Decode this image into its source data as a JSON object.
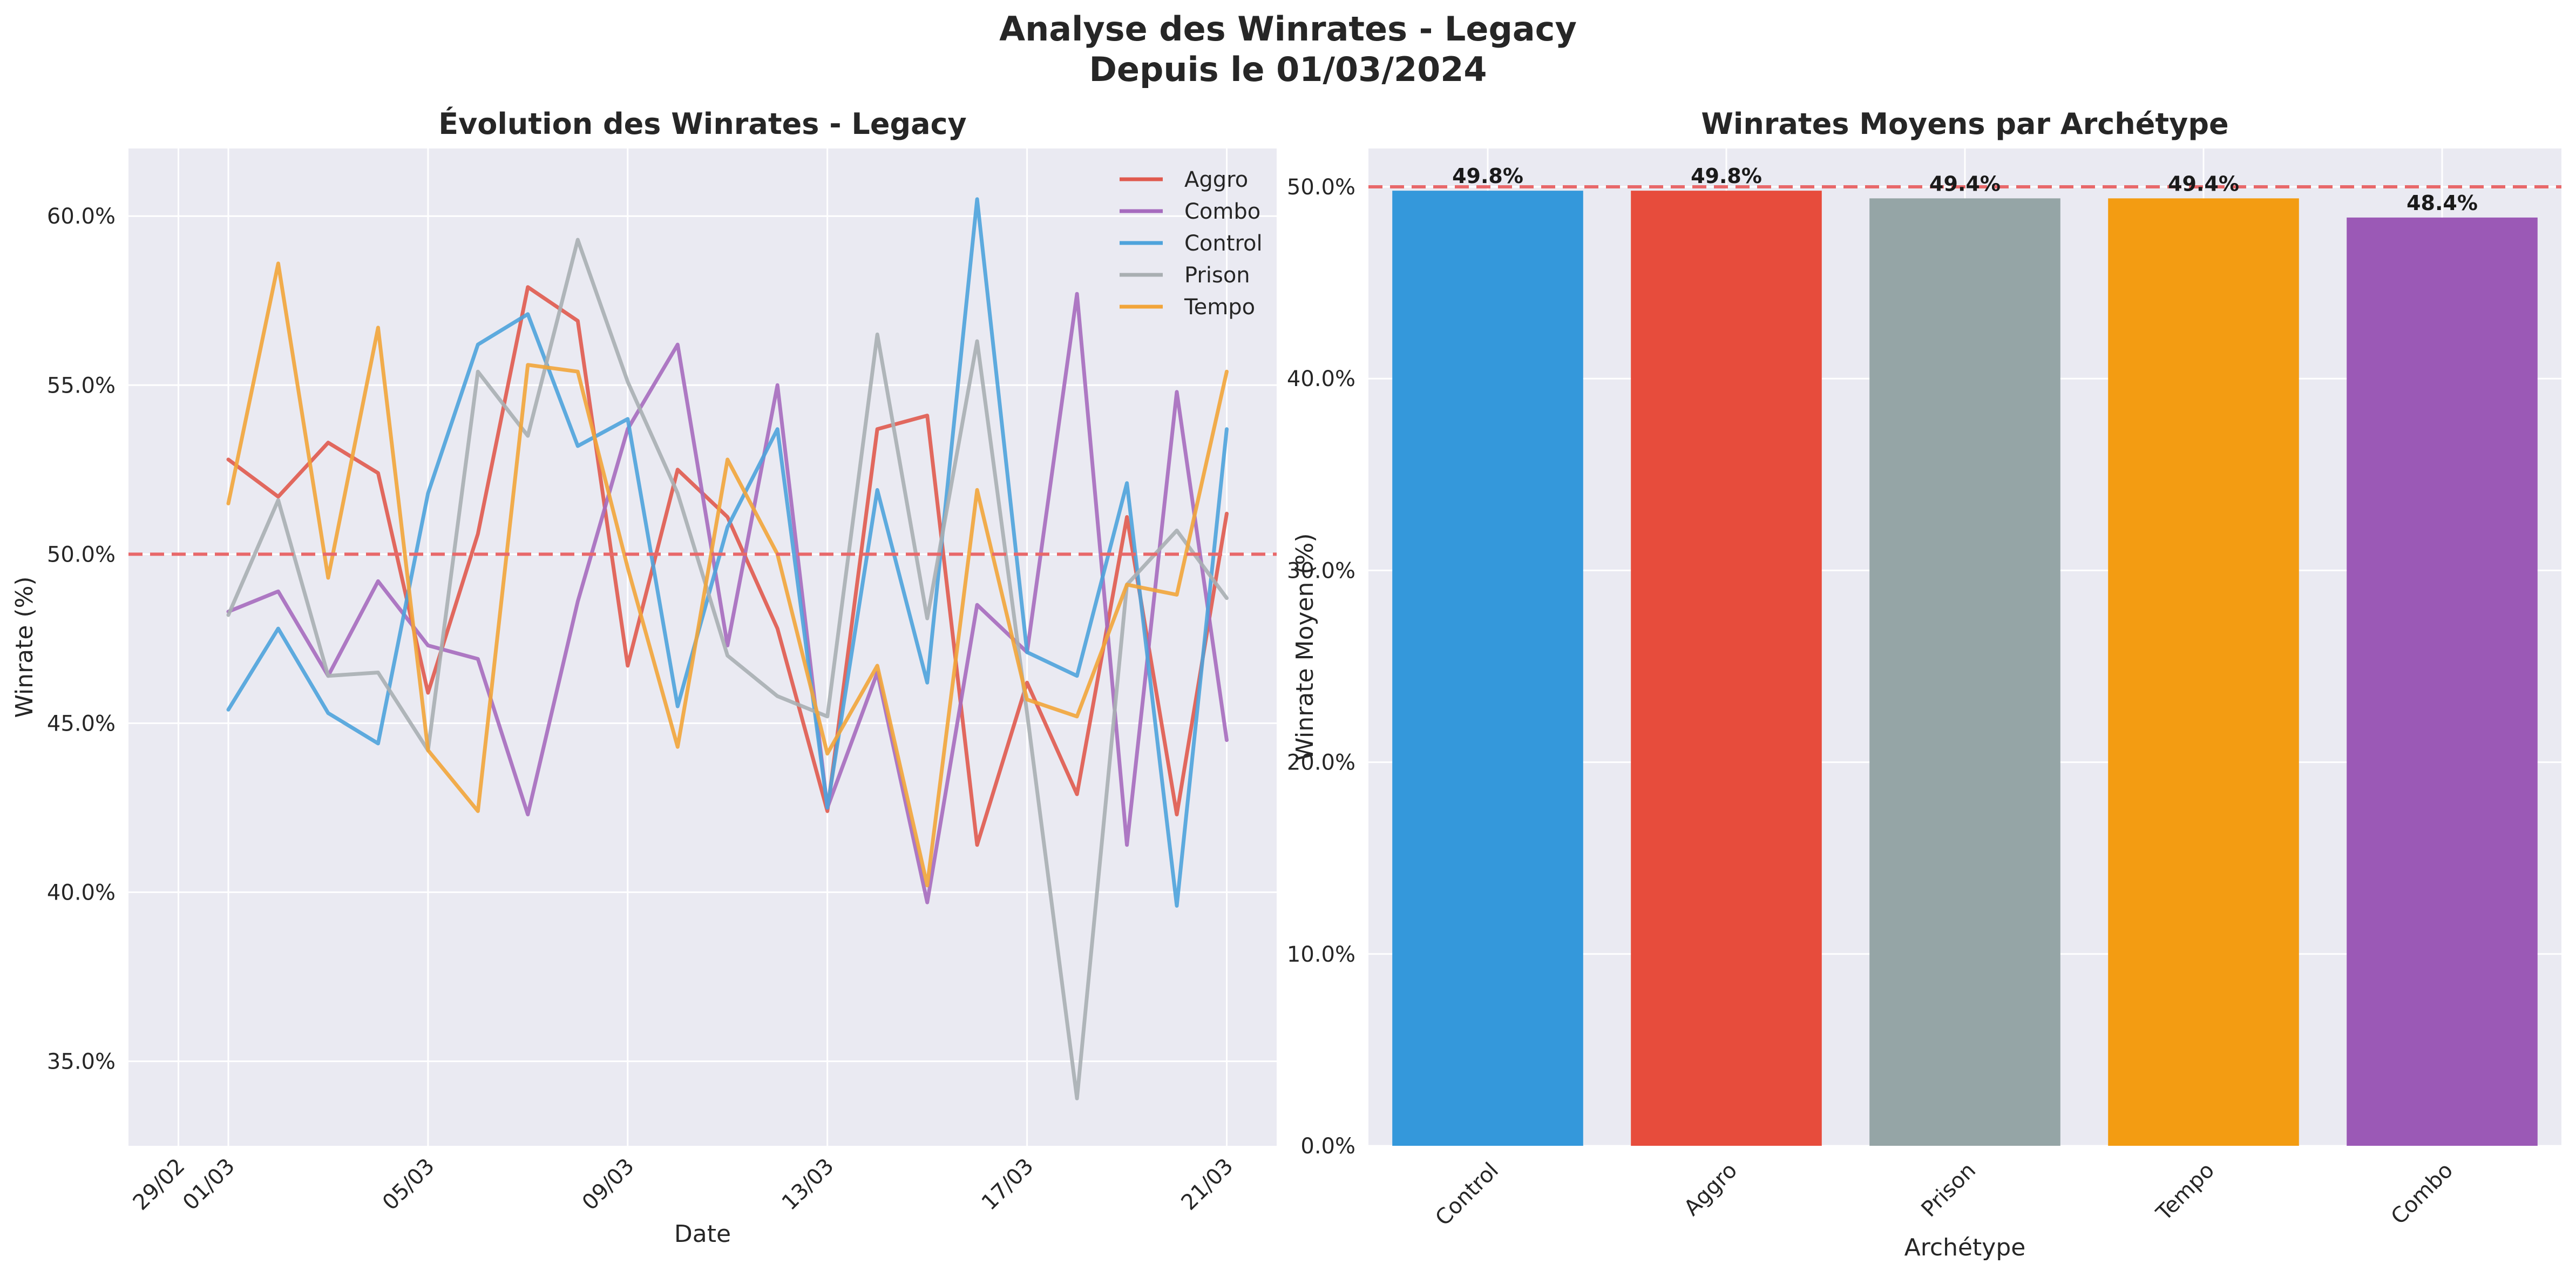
{
  "figure": {
    "title_line1": "Analyse des Winrates - Legacy",
    "title_line2": "Depuis le 01/03/2024"
  },
  "chart_data": [
    {
      "type": "line",
      "title": "Évolution des Winrates - Legacy",
      "xlabel": "Date",
      "ylabel": "Winrate (%)",
      "x": [
        "2024-03-01",
        "2024-03-02",
        "2024-03-03",
        "2024-03-04",
        "2024-03-05",
        "2024-03-06",
        "2024-03-07",
        "2024-03-08",
        "2024-03-09",
        "2024-03-10",
        "2024-03-11",
        "2024-03-12",
        "2024-03-13",
        "2024-03-14",
        "2024-03-15",
        "2024-03-16",
        "2024-03-17",
        "2024-03-18",
        "2024-03-19",
        "2024-03-20",
        "2024-03-21"
      ],
      "xlim": [
        "2024-02-28",
        "2024-03-22"
      ],
      "xticks": [
        "2024-02-29",
        "2024-03-01",
        "2024-03-05",
        "2024-03-09",
        "2024-03-13",
        "2024-03-17",
        "2024-03-21"
      ],
      "xtick_labels": [
        "29/02",
        "01/03",
        "05/03",
        "09/03",
        "13/03",
        "17/03",
        "21/03"
      ],
      "ylim": [
        32.5,
        62
      ],
      "yticks": [
        35,
        40,
        45,
        50,
        55,
        60
      ],
      "ytick_labels": [
        "35.0%",
        "40.0%",
        "45.0%",
        "50.0%",
        "55.0%",
        "60.0%"
      ],
      "reference_line": 50,
      "reference_color": "#e8686a",
      "grid": true,
      "legend_position": "top-right",
      "series": [
        {
          "name": "Aggro",
          "color": "#e05a4e",
          "values": [
            52.8,
            51.7,
            53.3,
            52.4,
            45.9,
            50.6,
            57.9,
            56.9,
            46.7,
            52.5,
            51.1,
            47.8,
            42.4,
            53.7,
            54.1,
            41.4,
            46.2,
            42.9,
            51.1,
            42.3,
            51.2
          ]
        },
        {
          "name": "Combo",
          "color": "#a66bbe",
          "values": [
            48.3,
            48.9,
            46.4,
            49.2,
            47.3,
            46.9,
            42.3,
            48.6,
            53.7,
            56.2,
            47.3,
            55.0,
            42.5,
            46.5,
            39.7,
            48.5,
            47.1,
            57.7,
            41.4,
            54.8,
            44.5
          ]
        },
        {
          "name": "Control",
          "color": "#4ea3db",
          "values": [
            45.4,
            47.8,
            45.3,
            44.4,
            51.8,
            56.2,
            57.1,
            53.2,
            54.0,
            45.5,
            50.8,
            53.7,
            42.5,
            51.9,
            46.2,
            60.5,
            47.1,
            46.4,
            52.1,
            39.6,
            53.7
          ]
        },
        {
          "name": "Prison",
          "color": "#a9afb2",
          "values": [
            48.2,
            51.6,
            46.4,
            46.5,
            44.2,
            55.4,
            53.5,
            59.3,
            55.1,
            51.8,
            47.0,
            45.8,
            45.2,
            56.5,
            48.1,
            56.3,
            45.3,
            33.9,
            49.1,
            50.7,
            48.7
          ]
        },
        {
          "name": "Tempo",
          "color": "#f2a53a",
          "values": [
            51.5,
            58.6,
            49.3,
            56.7,
            44.2,
            42.4,
            55.6,
            55.4,
            49.6,
            44.3,
            52.8,
            50.0,
            44.1,
            46.7,
            40.2,
            51.9,
            45.7,
            45.2,
            49.1,
            48.8,
            55.4
          ]
        }
      ]
    },
    {
      "type": "bar",
      "title": "Winrates Moyens par Archétype",
      "xlabel": "Archétype",
      "ylabel": "Winrate Moyen (%)",
      "categories": [
        "Control",
        "Aggro",
        "Prison",
        "Tempo",
        "Combo"
      ],
      "values": [
        49.8,
        49.8,
        49.4,
        49.4,
        48.4
      ],
      "value_labels": [
        "49.8%",
        "49.8%",
        "49.4%",
        "49.4%",
        "48.4%"
      ],
      "colors": [
        "#3498db",
        "#e74c3c",
        "#95a5a6",
        "#f39c12",
        "#9b59b6"
      ],
      "ylim": [
        0,
        52
      ],
      "yticks": [
        0,
        10,
        20,
        30,
        40,
        50
      ],
      "ytick_labels": [
        "0.0%",
        "10.0%",
        "20.0%",
        "30.0%",
        "40.0%",
        "50.0%"
      ],
      "reference_line": 50,
      "reference_color": "#e8686a",
      "grid": true
    }
  ]
}
